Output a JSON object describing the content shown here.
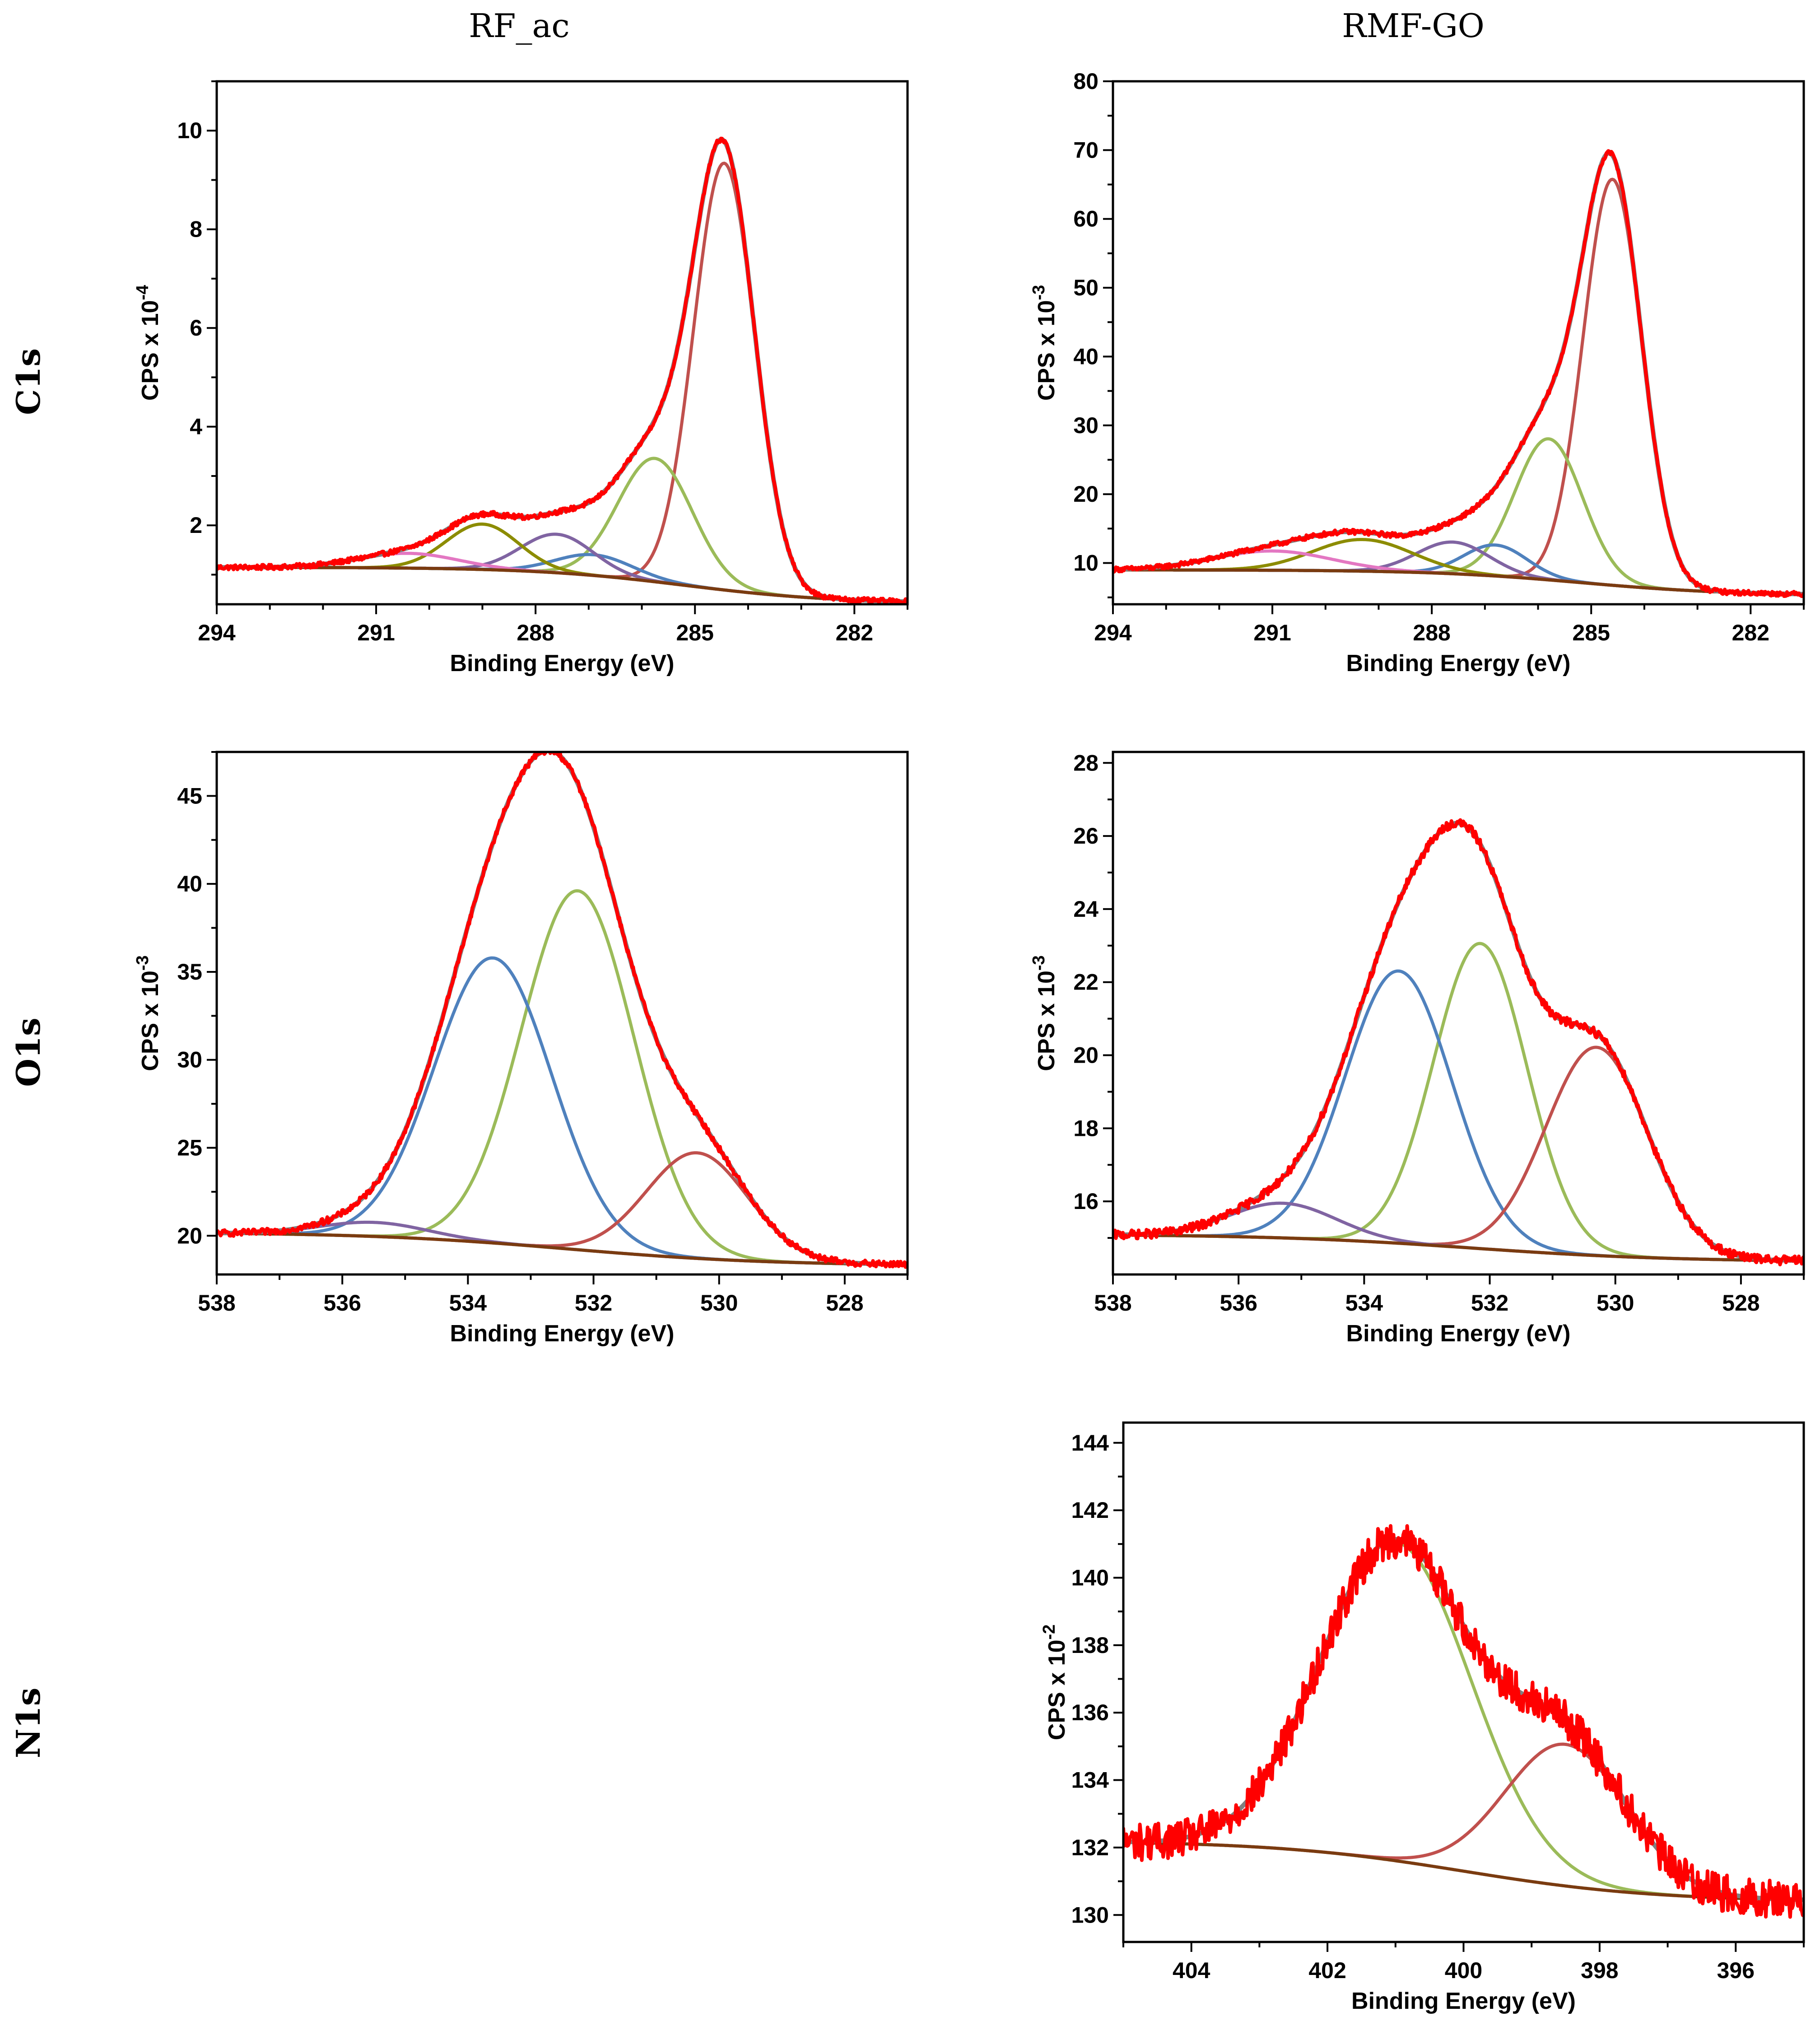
{
  "column_headers": [
    "RF_ac",
    "RMF-GO"
  ],
  "row_headers": [
    "C1s",
    "O1s",
    "N1s"
  ],
  "colors": {
    "envelope": "#808080",
    "background": "#7a3b10",
    "measured": "#ff0000",
    "red": "#c0504d",
    "green": "#9bbb59",
    "blue": "#4f81bd",
    "purple": "#8064a2",
    "pink": "#e377c2",
    "olive": "#8c8c00"
  },
  "chart_data": [
    {
      "type": "line",
      "id": "c1s-rfac",
      "xlabel": "Binding Energy (eV)",
      "ylabel": "CPS x 10",
      "ylabel_exp": "-4",
      "xlim": [
        294,
        281
      ],
      "ylim": [
        0.4,
        11.0
      ],
      "xticks": [
        294,
        291,
        288,
        285,
        282
      ],
      "yticks": [
        2,
        4,
        6,
        8,
        10
      ],
      "background": {
        "type": "shirley",
        "high": 1.15,
        "low": 0.42,
        "center": 285.2,
        "width": 1.4
      },
      "components": [
        {
          "color": "red",
          "center": 284.45,
          "height": 8.65,
          "fwhm": 1.35
        },
        {
          "color": "green",
          "center": 285.75,
          "height": 2.5,
          "fwhm": 1.65
        },
        {
          "color": "blue",
          "center": 286.9,
          "height": 0.42,
          "fwhm": 1.7
        },
        {
          "color": "purple",
          "center": 287.6,
          "height": 0.78,
          "fwhm": 1.6
        },
        {
          "color": "olive",
          "center": 289.0,
          "height": 0.92,
          "fwhm": 1.6
        },
        {
          "color": "pink",
          "center": 290.4,
          "height": 0.3,
          "fwhm": 2.2
        }
      ],
      "noise": 0.05
    },
    {
      "type": "line",
      "id": "c1s-rmfgo",
      "xlabel": "Binding Energy (eV)",
      "ylabel": "CPS x 10",
      "ylabel_exp": "-3",
      "xlim": [
        294,
        281
      ],
      "ylim": [
        4,
        80
      ],
      "xticks": [
        294,
        291,
        288,
        285,
        282
      ],
      "yticks": [
        10,
        20,
        30,
        40,
        50,
        60,
        70,
        80
      ],
      "background": {
        "type": "shirley",
        "high": 9.0,
        "low": 5.3,
        "center": 285.2,
        "width": 1.4
      },
      "components": [
        {
          "color": "red",
          "center": 284.6,
          "height": 59.0,
          "fwhm": 1.3
        },
        {
          "color": "green",
          "center": 285.8,
          "height": 20.5,
          "fwhm": 1.5
        },
        {
          "color": "blue",
          "center": 286.8,
          "height": 4.5,
          "fwhm": 1.4
        },
        {
          "color": "purple",
          "center": 287.6,
          "height": 4.6,
          "fwhm": 1.6
        },
        {
          "color": "olive",
          "center": 289.3,
          "height": 4.6,
          "fwhm": 2.2
        },
        {
          "color": "pink",
          "center": 291.0,
          "height": 2.8,
          "fwhm": 2.6
        }
      ],
      "noise": 0.35
    },
    {
      "type": "line",
      "id": "o1s-rfac",
      "xlabel": "Binding Energy (eV)",
      "ylabel": "CPS x 10",
      "ylabel_exp": "-3",
      "xlim": [
        538,
        527
      ],
      "ylim": [
        17.8,
        47.5
      ],
      "xticks": [
        538,
        536,
        534,
        532,
        530,
        528
      ],
      "yticks": [
        20,
        25,
        30,
        35,
        40,
        45
      ],
      "background": {
        "type": "shirley",
        "high": 20.2,
        "low": 18.3,
        "center": 532.4,
        "width": 1.6
      },
      "components": [
        {
          "color": "green",
          "center": 532.25,
          "height": 20.4,
          "fwhm": 2.1
        },
        {
          "color": "blue",
          "center": 533.6,
          "height": 16.2,
          "fwhm": 2.2
        },
        {
          "color": "red",
          "center": 530.35,
          "height": 6.0,
          "fwhm": 1.9
        },
        {
          "color": "purple",
          "center": 535.5,
          "height": 0.8,
          "fwhm": 2.0
        }
      ],
      "noise": 0.18
    },
    {
      "type": "line",
      "id": "o1s-rmfgo",
      "xlabel": "Binding Energy (eV)",
      "ylabel": "CPS x 10",
      "ylabel_exp": "-3",
      "xlim": [
        538,
        527
      ],
      "ylim": [
        14.0,
        28.3
      ],
      "xticks": [
        538,
        536,
        534,
        532,
        530,
        528
      ],
      "yticks": [
        16,
        18,
        20,
        22,
        24,
        26,
        28
      ],
      "background": {
        "type": "shirley",
        "high": 15.1,
        "low": 14.35,
        "center": 532.3,
        "width": 1.6
      },
      "components": [
        {
          "color": "green",
          "center": 532.15,
          "height": 8.35,
          "fwhm": 1.75
        },
        {
          "color": "blue",
          "center": 533.45,
          "height": 7.45,
          "fwhm": 2.0
        },
        {
          "color": "red",
          "center": 530.3,
          "height": 5.7,
          "fwhm": 1.9
        },
        {
          "color": "purple",
          "center": 535.3,
          "height": 0.95,
          "fwhm": 2.0
        }
      ],
      "noise": 0.12
    },
    {
      "type": "line",
      "id": "n1s-rmfgo",
      "xlabel": "Binding Energy (eV)",
      "ylabel": "CPS x 10",
      "ylabel_exp": "-2",
      "xlim": [
        405,
        395
      ],
      "ylim": [
        129.2,
        144.6
      ],
      "xticks": [
        404,
        402,
        400,
        398,
        396
      ],
      "yticks": [
        130,
        132,
        134,
        136,
        138,
        140,
        142,
        144
      ],
      "background": {
        "type": "shirley",
        "high": 132.2,
        "low": 130.4,
        "center": 400.0,
        "width": 1.4
      },
      "components": [
        {
          "color": "green",
          "center": 401.0,
          "height": 9.45,
          "fwhm": 2.6
        },
        {
          "color": "red",
          "center": 398.5,
          "height": 4.2,
          "fwhm": 2.1
        }
      ],
      "noise": 0.55
    }
  ]
}
